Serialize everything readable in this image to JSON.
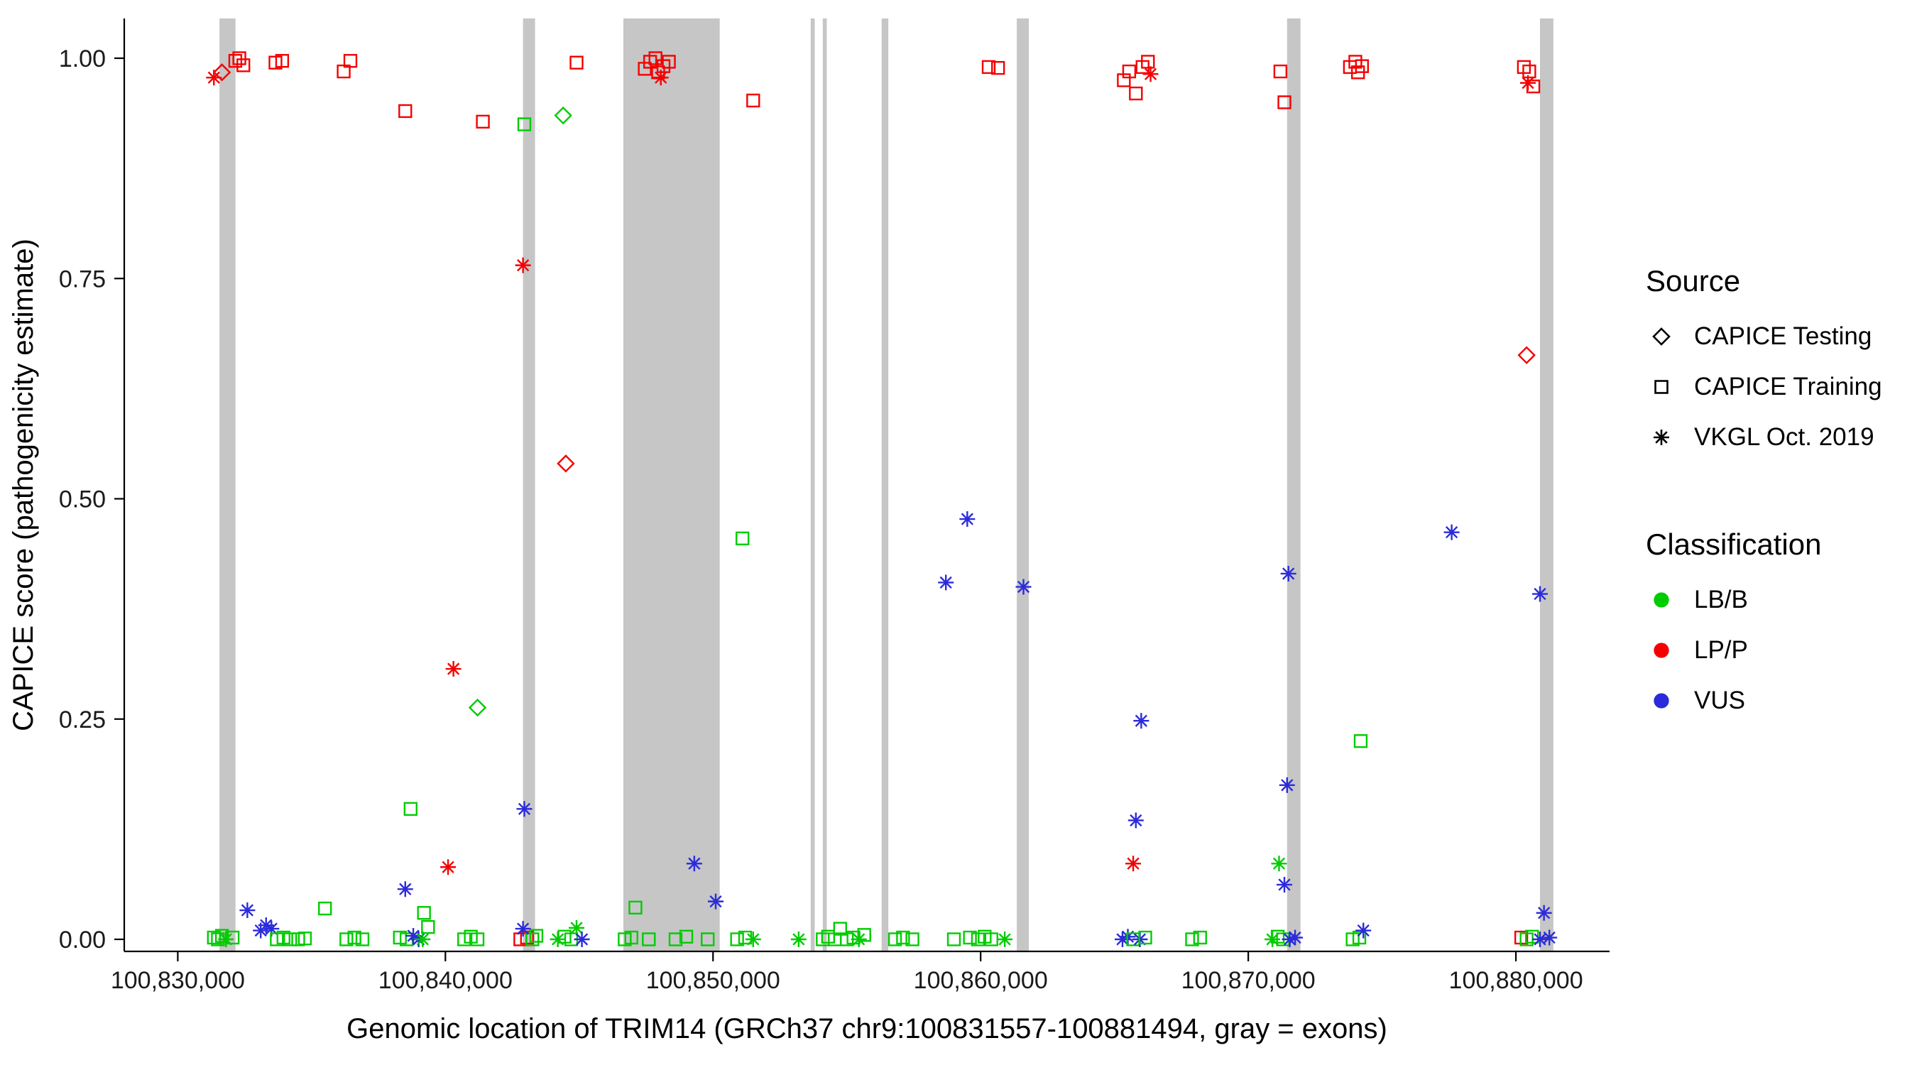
{
  "figure": {
    "background": "#FFFFFF"
  },
  "legend": {
    "source": {
      "title": "Source",
      "items": [
        {
          "label": "CAPICE Testing",
          "shape": "diamond",
          "color": "#000000"
        },
        {
          "label": "CAPICE Training",
          "shape": "square",
          "color": "#000000"
        },
        {
          "label": "VKGL Oct. 2019",
          "shape": "asterisk",
          "color": "#000000"
        }
      ]
    },
    "classification": {
      "title": "Classification",
      "items": [
        {
          "label": "LB/B",
          "color": "#00CC00"
        },
        {
          "label": "LP/P",
          "color": "#F40000"
        },
        {
          "label": "VUS",
          "color": "#2B2BDB"
        }
      ]
    }
  },
  "chart_data": {
    "type": "scatter",
    "title": "",
    "xlabel": "Genomic location of TRIM14 (GRCh37 chr9:100831557-100881494, gray = exons)",
    "ylabel": "CAPICE score (pathogenicity estimate)",
    "xlim": [
      100828000,
      100883500
    ],
    "ylim": [
      0,
      1
    ],
    "x_ticks": [
      100830000,
      100840000,
      100850000,
      100860000,
      100870000,
      100880000
    ],
    "x_tick_labels": [
      "100,830,000",
      "100,840,000",
      "100,850,000",
      "100,860,000",
      "100,870,000",
      "100,880,000"
    ],
    "y_ticks": [
      0,
      0.25,
      0.5,
      0.75,
      1
    ],
    "y_tick_labels": [
      "0.00",
      "0.25",
      "0.50",
      "0.75",
      "1.00"
    ],
    "grid": false,
    "legend_position": "right",
    "exon_color": "#C6C6C6",
    "exons": [
      [
        100831557,
        100832157
      ],
      [
        100842900,
        100843350
      ],
      [
        100846650,
        100850250
      ],
      [
        100853650,
        100853800
      ],
      [
        100854100,
        100854250
      ],
      [
        100856300,
        100856550
      ],
      [
        100861350,
        100861800
      ],
      [
        100871450,
        100871950
      ],
      [
        100880900,
        100881400
      ]
    ],
    "shape_by_source": {
      "testing": "diamond",
      "training": "square",
      "vkgl": "asterisk"
    },
    "color_by_classification": {
      "LB/B": "#00CC00",
      "LP/P": "#F40000",
      "VUS": "#2B2BDB"
    },
    "point_format": [
      "genomic_position",
      "capice_score",
      "source",
      "classification"
    ],
    "points": [
      [
        100831350,
        0.978,
        "vkgl",
        "LP/P"
      ],
      [
        100831650,
        0.984,
        "testing",
        "LP/P"
      ],
      [
        100832150,
        0.997,
        "training",
        "LP/P"
      ],
      [
        100832300,
        1.0,
        "training",
        "LP/P"
      ],
      [
        100832450,
        0.992,
        "training",
        "LP/P"
      ],
      [
        100833650,
        0.995,
        "training",
        "LP/P"
      ],
      [
        100833900,
        0.997,
        "training",
        "LP/P"
      ],
      [
        100836200,
        0.985,
        "training",
        "LP/P"
      ],
      [
        100836450,
        0.997,
        "training",
        "LP/P"
      ],
      [
        100838500,
        0.94,
        "training",
        "LP/P"
      ],
      [
        100841400,
        0.928,
        "training",
        "LP/P"
      ],
      [
        100842950,
        0.925,
        "training",
        "LB/B"
      ],
      [
        100844400,
        0.935,
        "testing",
        "LB/B"
      ],
      [
        100844900,
        0.995,
        "training",
        "LP/P"
      ],
      [
        100842900,
        0.765,
        "vkgl",
        "LP/P"
      ],
      [
        100844500,
        0.54,
        "testing",
        "LP/P"
      ],
      [
        100840300,
        0.307,
        "vkgl",
        "LP/P"
      ],
      [
        100841200,
        0.263,
        "testing",
        "LB/B"
      ],
      [
        100838700,
        0.148,
        "training",
        "LB/B"
      ],
      [
        100842950,
        0.148,
        "vkgl",
        "VUS"
      ],
      [
        100840100,
        0.082,
        "vkgl",
        "LP/P"
      ],
      [
        100838500,
        0.057,
        "vkgl",
        "VUS"
      ],
      [
        100832600,
        0.033,
        "vkgl",
        "VUS"
      ],
      [
        100835500,
        0.035,
        "training",
        "LB/B"
      ],
      [
        100833100,
        0.01,
        "vkgl",
        "VUS"
      ],
      [
        100833300,
        0.016,
        "vkgl",
        "VUS"
      ],
      [
        100833500,
        0.012,
        "vkgl",
        "VUS"
      ],
      [
        100839200,
        0.03,
        "training",
        "LB/B"
      ],
      [
        100839350,
        0.014,
        "training",
        "LB/B"
      ],
      [
        100831350,
        0.002,
        "training",
        "LB/B"
      ],
      [
        100831500,
        0.0,
        "training",
        "LB/B"
      ],
      [
        100831650,
        0.004,
        "training",
        "LB/B"
      ],
      [
        100831800,
        0.0,
        "vkgl",
        "LB/B"
      ],
      [
        100832050,
        0.002,
        "training",
        "LB/B"
      ],
      [
        100833700,
        0.0,
        "training",
        "LB/B"
      ],
      [
        100833950,
        0.002,
        "training",
        "LB/B"
      ],
      [
        100834200,
        0.0,
        "training",
        "LB/B"
      ],
      [
        100834500,
        0.0,
        "training",
        "LB/B"
      ],
      [
        100834750,
        0.001,
        "training",
        "LB/B"
      ],
      [
        100836300,
        0.0,
        "training",
        "LB/B"
      ],
      [
        100836600,
        0.002,
        "training",
        "LB/B"
      ],
      [
        100836900,
        0.0,
        "training",
        "LB/B"
      ],
      [
        100838300,
        0.002,
        "training",
        "LB/B"
      ],
      [
        100838550,
        0.0,
        "training",
        "LB/B"
      ],
      [
        100838800,
        0.004,
        "vkgl",
        "VUS"
      ],
      [
        100839000,
        0.0,
        "vkgl",
        "VUS"
      ],
      [
        100839150,
        0.0,
        "vkgl",
        "LB/B"
      ],
      [
        100840700,
        0.0,
        "training",
        "LB/B"
      ],
      [
        100840950,
        0.003,
        "training",
        "LB/B"
      ],
      [
        100841200,
        0.0,
        "training",
        "LB/B"
      ],
      [
        100842800,
        0.0,
        "training",
        "LP/P"
      ],
      [
        100843050,
        0.002,
        "training",
        "LP/P"
      ],
      [
        100843250,
        0.0,
        "training",
        "LB/B"
      ],
      [
        100843400,
        0.004,
        "training",
        "LB/B"
      ],
      [
        100842900,
        0.012,
        "vkgl",
        "VUS"
      ],
      [
        100844200,
        0.0,
        "vkgl",
        "LB/B"
      ],
      [
        100844450,
        0.003,
        "training",
        "LB/B"
      ],
      [
        100844700,
        0.0,
        "training",
        "LB/B"
      ],
      [
        100844900,
        0.013,
        "vkgl",
        "LB/B"
      ],
      [
        100845100,
        0.0,
        "vkgl",
        "VUS"
      ],
      [
        100847450,
        0.988,
        "training",
        "LP/P"
      ],
      [
        100847650,
        0.996,
        "training",
        "LP/P"
      ],
      [
        100847850,
        1.0,
        "training",
        "LP/P"
      ],
      [
        100847950,
        0.984,
        "training",
        "LP/P"
      ],
      [
        100848150,
        0.991,
        "training",
        "LP/P"
      ],
      [
        100848350,
        0.996,
        "training",
        "LP/P"
      ],
      [
        100848050,
        0.978,
        "vkgl",
        "LP/P"
      ],
      [
        100849300,
        0.086,
        "vkgl",
        "VUS"
      ],
      [
        100850100,
        0.043,
        "vkgl",
        "VUS"
      ],
      [
        100847100,
        0.036,
        "training",
        "LB/B"
      ],
      [
        100846700,
        0.0,
        "training",
        "LB/B"
      ],
      [
        100846950,
        0.002,
        "training",
        "LB/B"
      ],
      [
        100847600,
        0.0,
        "training",
        "LB/B"
      ],
      [
        100848600,
        0.0,
        "training",
        "LB/B"
      ],
      [
        100849000,
        0.003,
        "training",
        "LB/B"
      ],
      [
        100849800,
        0.0,
        "training",
        "LB/B"
      ],
      [
        100851500,
        0.952,
        "training",
        "LP/P"
      ],
      [
        100851100,
        0.455,
        "training",
        "LB/B"
      ],
      [
        100850900,
        0.0,
        "training",
        "LB/B"
      ],
      [
        100851200,
        0.002,
        "training",
        "LB/B"
      ],
      [
        100851500,
        0.0,
        "vkgl",
        "LB/B"
      ],
      [
        100853200,
        0.0,
        "vkgl",
        "LB/B"
      ],
      [
        100854100,
        0.0,
        "training",
        "LB/B"
      ],
      [
        100854300,
        0.003,
        "training",
        "LB/B"
      ],
      [
        100854550,
        0.0,
        "training",
        "LB/B"
      ],
      [
        100854750,
        0.012,
        "training",
        "LB/B"
      ],
      [
        100855000,
        0.0,
        "training",
        "LB/B"
      ],
      [
        100855250,
        0.002,
        "training",
        "LB/B"
      ],
      [
        100855450,
        0.0,
        "vkgl",
        "LB/B"
      ],
      [
        100855650,
        0.005,
        "training",
        "LB/B"
      ],
      [
        100856800,
        0.0,
        "training",
        "LB/B"
      ],
      [
        100857100,
        0.002,
        "training",
        "LB/B"
      ],
      [
        100857450,
        0.0,
        "training",
        "LB/B"
      ],
      [
        100858700,
        0.405,
        "vkgl",
        "VUS"
      ],
      [
        100859500,
        0.477,
        "vkgl",
        "VUS"
      ],
      [
        100861600,
        0.4,
        "vkgl",
        "VUS"
      ],
      [
        100860300,
        0.99,
        "training",
        "LP/P"
      ],
      [
        100860650,
        0.989,
        "training",
        "LP/P"
      ],
      [
        100859000,
        0.0,
        "training",
        "LB/B"
      ],
      [
        100859600,
        0.002,
        "training",
        "LB/B"
      ],
      [
        100859900,
        0.0,
        "training",
        "LB/B"
      ],
      [
        100860150,
        0.003,
        "training",
        "LB/B"
      ],
      [
        100860400,
        0.0,
        "training",
        "LB/B"
      ],
      [
        100860900,
        0.0,
        "vkgl",
        "LB/B"
      ],
      [
        100865350,
        0.975,
        "training",
        "LP/P"
      ],
      [
        100865550,
        0.985,
        "training",
        "LP/P"
      ],
      [
        100865800,
        0.96,
        "training",
        "LP/P"
      ],
      [
        100866050,
        0.99,
        "training",
        "LP/P"
      ],
      [
        100866250,
        0.996,
        "training",
        "LP/P"
      ],
      [
        100866350,
        0.982,
        "vkgl",
        "LP/P"
      ],
      [
        100866000,
        0.248,
        "vkgl",
        "VUS"
      ],
      [
        100865800,
        0.135,
        "vkgl",
        "VUS"
      ],
      [
        100865700,
        0.086,
        "vkgl",
        "LP/P"
      ],
      [
        100865300,
        0.0,
        "vkgl",
        "VUS"
      ],
      [
        100865500,
        0.003,
        "vkgl",
        "VUS"
      ],
      [
        100865700,
        0.0,
        "training",
        "LB/B"
      ],
      [
        100865950,
        0.0,
        "vkgl",
        "VUS"
      ],
      [
        100866150,
        0.002,
        "training",
        "LB/B"
      ],
      [
        100867900,
        0.0,
        "training",
        "LB/B"
      ],
      [
        100868200,
        0.002,
        "training",
        "LB/B"
      ],
      [
        100871200,
        0.985,
        "training",
        "LP/P"
      ],
      [
        100871350,
        0.95,
        "training",
        "LP/P"
      ],
      [
        100871500,
        0.415,
        "vkgl",
        "VUS"
      ],
      [
        100871450,
        0.175,
        "vkgl",
        "VUS"
      ],
      [
        100871150,
        0.086,
        "vkgl",
        "LB/B"
      ],
      [
        100871350,
        0.062,
        "vkgl",
        "VUS"
      ],
      [
        100870900,
        0.0,
        "vkgl",
        "LB/B"
      ],
      [
        100871100,
        0.003,
        "training",
        "LB/B"
      ],
      [
        100871300,
        0.0,
        "training",
        "LB/B"
      ],
      [
        100871550,
        0.0,
        "vkgl",
        "VUS"
      ],
      [
        100871750,
        0.002,
        "vkgl",
        "VUS"
      ],
      [
        100873800,
        0.99,
        "training",
        "LP/P"
      ],
      [
        100874000,
        0.996,
        "training",
        "LP/P"
      ],
      [
        100874100,
        0.984,
        "training",
        "LP/P"
      ],
      [
        100874250,
        0.991,
        "training",
        "LP/P"
      ],
      [
        100874200,
        0.225,
        "training",
        "LB/B"
      ],
      [
        100873900,
        0.0,
        "training",
        "LB/B"
      ],
      [
        100874150,
        0.002,
        "training",
        "LB/B"
      ],
      [
        100874300,
        0.01,
        "vkgl",
        "VUS"
      ],
      [
        100877600,
        0.462,
        "vkgl",
        "VUS"
      ],
      [
        100880900,
        0.392,
        "vkgl",
        "VUS"
      ],
      [
        100880300,
        0.99,
        "training",
        "LP/P"
      ],
      [
        100880500,
        0.985,
        "training",
        "LP/P"
      ],
      [
        100880450,
        0.972,
        "vkgl",
        "LP/P"
      ],
      [
        100880650,
        0.968,
        "training",
        "LP/P"
      ],
      [
        100880400,
        0.663,
        "testing",
        "LP/P"
      ],
      [
        100881050,
        0.03,
        "vkgl",
        "VUS"
      ],
      [
        100880200,
        0.002,
        "training",
        "LP/P"
      ],
      [
        100880400,
        0.0,
        "training",
        "LB/B"
      ],
      [
        100880600,
        0.003,
        "training",
        "LB/B"
      ],
      [
        100880900,
        0.0,
        "vkgl",
        "VUS"
      ],
      [
        100881250,
        0.002,
        "vkgl",
        "VUS"
      ]
    ]
  }
}
